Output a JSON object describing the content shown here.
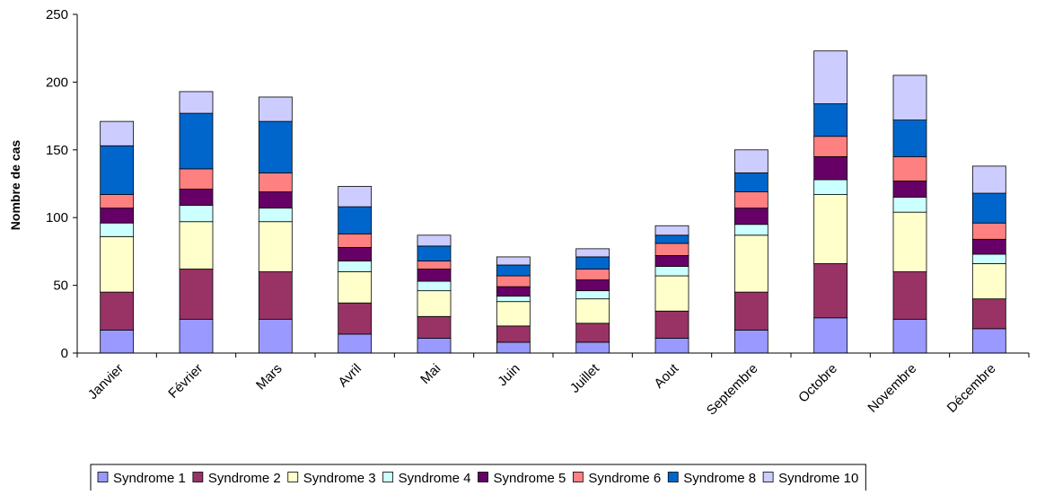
{
  "chart_data": {
    "type": "bar",
    "stacked": true,
    "title": "",
    "xlabel": "",
    "ylabel": "Nombre de cas",
    "ylim": [
      0,
      250
    ],
    "yticks": [
      0,
      50,
      100,
      150,
      200,
      250
    ],
    "grid": false,
    "legend_position": "bottom",
    "categories": [
      "Janvier",
      "Février",
      "Mars",
      "Avril",
      "Mai",
      "Juin",
      "Juillet",
      "Aout",
      "Septembre",
      "Octobre",
      "Novembre",
      "Décembre"
    ],
    "series": [
      {
        "name": "Syndrome 1",
        "color": "#9999FF",
        "values": [
          17,
          25,
          25,
          14,
          11,
          8,
          8,
          11,
          17,
          26,
          25,
          18
        ]
      },
      {
        "name": "Syndrome 2",
        "color": "#993366",
        "values": [
          28,
          37,
          35,
          23,
          16,
          12,
          14,
          20,
          28,
          40,
          35,
          22
        ]
      },
      {
        "name": "Syndrome 3",
        "color": "#FFFFCC",
        "values": [
          41,
          35,
          37,
          23,
          19,
          18,
          18,
          26,
          42,
          51,
          44,
          26
        ]
      },
      {
        "name": "Syndrome 4",
        "color": "#CCFFFF",
        "values": [
          10,
          12,
          10,
          8,
          7,
          4,
          6,
          7,
          8,
          11,
          11,
          7
        ]
      },
      {
        "name": "Syndrome 5",
        "color": "#660066",
        "values": [
          11,
          12,
          12,
          10,
          9,
          7,
          8,
          8,
          12,
          17,
          12,
          11
        ]
      },
      {
        "name": "Syndrome 6",
        "color": "#FF8080",
        "values": [
          10,
          15,
          14,
          10,
          6,
          8,
          8,
          9,
          12,
          15,
          18,
          12
        ]
      },
      {
        "name": "Syndrome 8",
        "color": "#0066CC",
        "values": [
          36,
          41,
          38,
          20,
          11,
          8,
          9,
          6,
          14,
          24,
          27,
          22
        ]
      },
      {
        "name": "Syndrome 10",
        "color": "#CCCCFF",
        "values": [
          18,
          16,
          18,
          15,
          8,
          6,
          6,
          7,
          17,
          39,
          33,
          20
        ]
      }
    ]
  }
}
